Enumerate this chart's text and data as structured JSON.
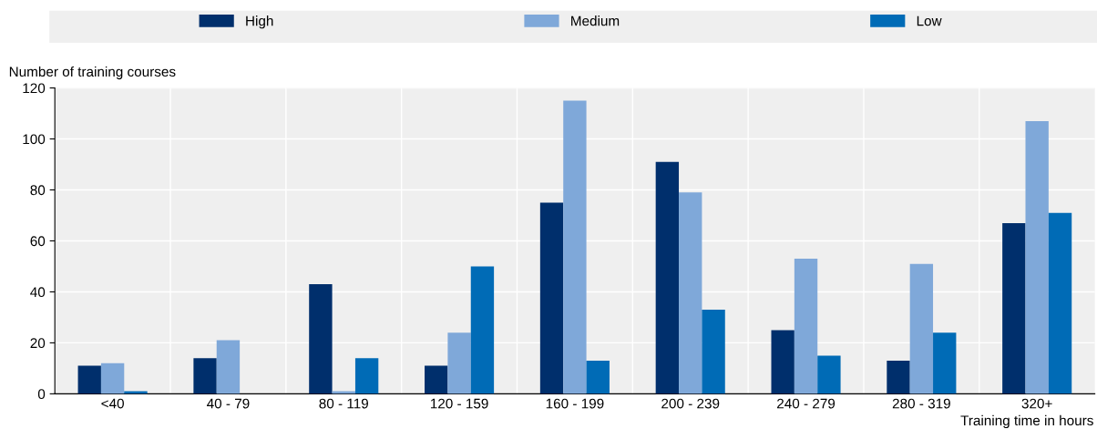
{
  "chart_data": {
    "type": "bar",
    "categories": [
      "<40",
      "40 - 79",
      "80 - 119",
      "120 - 159",
      "160 - 199",
      "200 - 239",
      "240 - 279",
      "280 - 319",
      "320+"
    ],
    "series": [
      {
        "name": "High",
        "color": "#002f6c",
        "values": [
          11,
          14,
          43,
          11,
          75,
          91,
          25,
          13,
          67
        ]
      },
      {
        "name": "Medium",
        "color": "#7fa8d9",
        "values": [
          12,
          21,
          1,
          24,
          115,
          79,
          53,
          51,
          107
        ]
      },
      {
        "name": "Low",
        "color": "#006bb6",
        "values": [
          1,
          0,
          14,
          50,
          13,
          33,
          15,
          24,
          71
        ]
      }
    ],
    "ylabel": "Number of training courses",
    "xlabel": "Training time in hours",
    "ylim": [
      0,
      120
    ],
    "yticks": [
      0,
      20,
      40,
      60,
      80,
      100,
      120
    ],
    "grid": true,
    "legend": "top"
  }
}
